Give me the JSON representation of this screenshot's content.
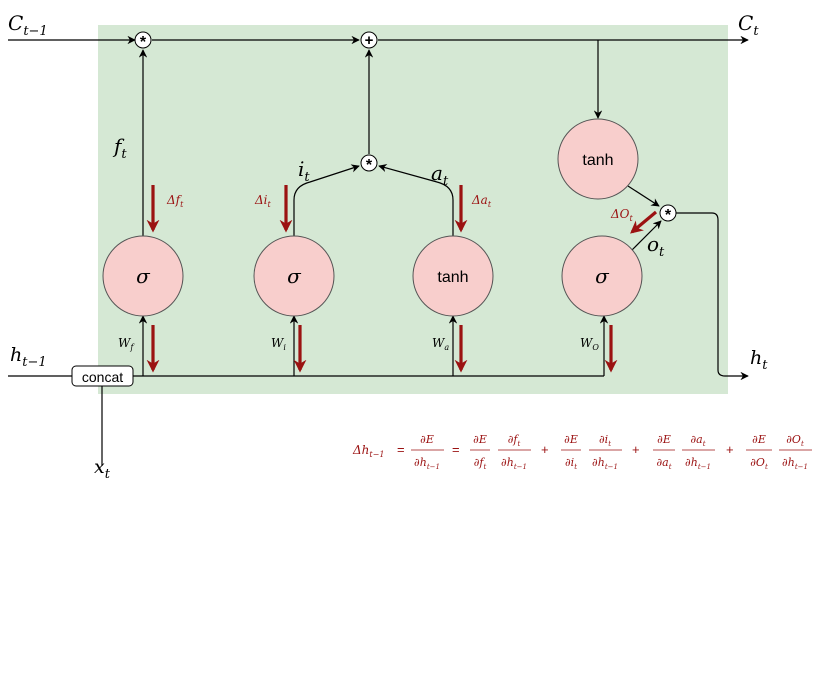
{
  "colors": {
    "cell_background": "#d5e8d4",
    "node_fill": "#f8cecc",
    "node_stroke": "#555555",
    "line": "#000000",
    "gradient": "#9b1212"
  },
  "nodes": {
    "sigma_forget": "σ",
    "sigma_input": "σ",
    "tanh_candidate": "tanh",
    "sigma_output": "σ",
    "tanh_cell": "tanh",
    "concat": "concat",
    "op_mult": "*",
    "op_add": "+"
  },
  "labels": {
    "c_prev": {
      "base": "C",
      "sub": "t−1"
    },
    "c_t": {
      "base": "C",
      "sub": "t"
    },
    "h_prev": {
      "base": "h",
      "sub": "t−1"
    },
    "h_t": {
      "base": "h",
      "sub": "t"
    },
    "x_t": {
      "base": "x",
      "sub": "t"
    },
    "f_t": {
      "base": "f",
      "sub": "t"
    },
    "i_t": {
      "base": "i",
      "sub": "t"
    },
    "a_t": {
      "base": "a",
      "sub": "t"
    },
    "o_t": {
      "base": "o",
      "sub": "t"
    },
    "w_f": {
      "base": "W",
      "sub": "f"
    },
    "w_i": {
      "base": "W",
      "sub": "i"
    },
    "w_a": {
      "base": "W",
      "sub": "a"
    },
    "w_o": {
      "base": "W",
      "sub": "O"
    }
  },
  "gradients": {
    "delta_f": {
      "base": "Δf",
      "sub": "t"
    },
    "delta_i": {
      "base": "Δi",
      "sub": "t"
    },
    "delta_a": {
      "base": "Δa",
      "sub": "t"
    },
    "delta_o": {
      "base": "ΔO",
      "sub": "t"
    }
  },
  "equation": {
    "lhs": {
      "base": "Δh",
      "sub": "t−1"
    },
    "equals": "=",
    "plus": "+",
    "total": {
      "num": "∂E",
      "den": "∂h",
      "den_sub": "t−1"
    },
    "terms": [
      {
        "num1": "∂E",
        "den1": "∂f",
        "den1_sub": "t",
        "num2": "∂f",
        "num2_sub": "t",
        "den2": "∂h",
        "den2_sub": "t−1"
      },
      {
        "num1": "∂E",
        "den1": "∂i",
        "den1_sub": "t",
        "num2": "∂i",
        "num2_sub": "t",
        "den2": "∂h",
        "den2_sub": "t−1"
      },
      {
        "num1": "∂E",
        "den1": "∂a",
        "den1_sub": "t",
        "num2": "∂a",
        "num2_sub": "t",
        "den2": "∂h",
        "den2_sub": "t−1"
      },
      {
        "num1": "∂E",
        "den1": "∂O",
        "den1_sub": "t",
        "num2": "∂O",
        "num2_sub": "t",
        "den2": "∂h",
        "den2_sub": "t−1"
      }
    ]
  }
}
